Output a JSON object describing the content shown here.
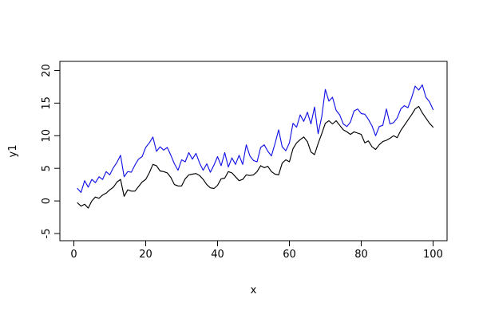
{
  "chart_data": {
    "type": "line",
    "title": "",
    "xlabel": "x",
    "ylabel": "y1",
    "x_start": 1,
    "x_step": 1,
    "n_points": 100,
    "x_ticks": [
      0,
      20,
      40,
      60,
      80,
      100
    ],
    "y_ticks": [
      -5,
      0,
      5,
      10,
      15,
      20
    ],
    "xlim": [
      -3.9,
      103.9
    ],
    "ylim": [
      -6.1,
      21.4
    ],
    "grid": false,
    "legend_position": "none",
    "axis_color": "#000000",
    "series": [
      {
        "name": "black-line-y1",
        "color": "#000000",
        "values": [
          -0.3,
          -0.8,
          -0.5,
          -1.1,
          0.0,
          0.6,
          0.4,
          0.9,
          1.2,
          1.7,
          2.1,
          2.9,
          3.3,
          0.7,
          1.7,
          1.5,
          1.5,
          2.2,
          2.9,
          3.3,
          4.3,
          5.6,
          5.4,
          4.6,
          4.5,
          4.3,
          3.6,
          2.5,
          2.3,
          2.3,
          3.4,
          4.0,
          4.1,
          4.2,
          3.9,
          3.3,
          2.5,
          2.0,
          1.9,
          2.4,
          3.4,
          3.5,
          4.5,
          4.3,
          3.7,
          3.1,
          3.3,
          4.0,
          3.9,
          4.0,
          4.5,
          5.4,
          5.1,
          5.3,
          4.5,
          4.1,
          4.0,
          5.8,
          6.3,
          6.0,
          8.0,
          8.9,
          9.4,
          9.8,
          9.1,
          7.5,
          7.1,
          8.8,
          10.3,
          11.9,
          12.3,
          11.8,
          12.3,
          11.6,
          10.9,
          10.6,
          10.2,
          10.6,
          10.4,
          10.2,
          8.9,
          9.2,
          8.3,
          7.9,
          8.6,
          9.1,
          9.3,
          9.6,
          10.0,
          9.7,
          10.8,
          11.6,
          12.4,
          13.2,
          14.1,
          14.5,
          13.5,
          12.7,
          11.9,
          11.3
        ]
      },
      {
        "name": "blue-line",
        "color": "#1414e6",
        "values": [
          1.9,
          1.3,
          3.1,
          2.1,
          3.3,
          2.8,
          3.7,
          3.3,
          4.5,
          4.0,
          5.1,
          5.9,
          7.0,
          3.7,
          4.5,
          4.4,
          5.5,
          6.4,
          6.8,
          8.2,
          8.9,
          9.8,
          7.6,
          8.3,
          7.8,
          8.2,
          7.0,
          5.7,
          4.7,
          6.3,
          6.0,
          7.4,
          6.4,
          7.3,
          5.8,
          4.7,
          5.7,
          4.4,
          5.5,
          6.8,
          5.4,
          7.4,
          5.2,
          6.6,
          5.6,
          7.0,
          5.6,
          8.6,
          6.9,
          6.2,
          6.0,
          8.2,
          8.6,
          7.6,
          6.9,
          8.8,
          10.9,
          8.3,
          7.7,
          8.9,
          11.9,
          11.3,
          13.2,
          12.2,
          13.6,
          11.8,
          14.4,
          10.3,
          12.9,
          17.1,
          15.3,
          15.9,
          13.9,
          13.2,
          11.8,
          11.4,
          12.1,
          13.8,
          14.1,
          13.4,
          13.3,
          12.5,
          11.5,
          10.0,
          11.4,
          11.6,
          14.1,
          11.8,
          12.0,
          12.7,
          14.1,
          14.6,
          14.3,
          15.8,
          17.6,
          17.0,
          17.8,
          15.9,
          15.2,
          14.0
        ]
      }
    ]
  }
}
